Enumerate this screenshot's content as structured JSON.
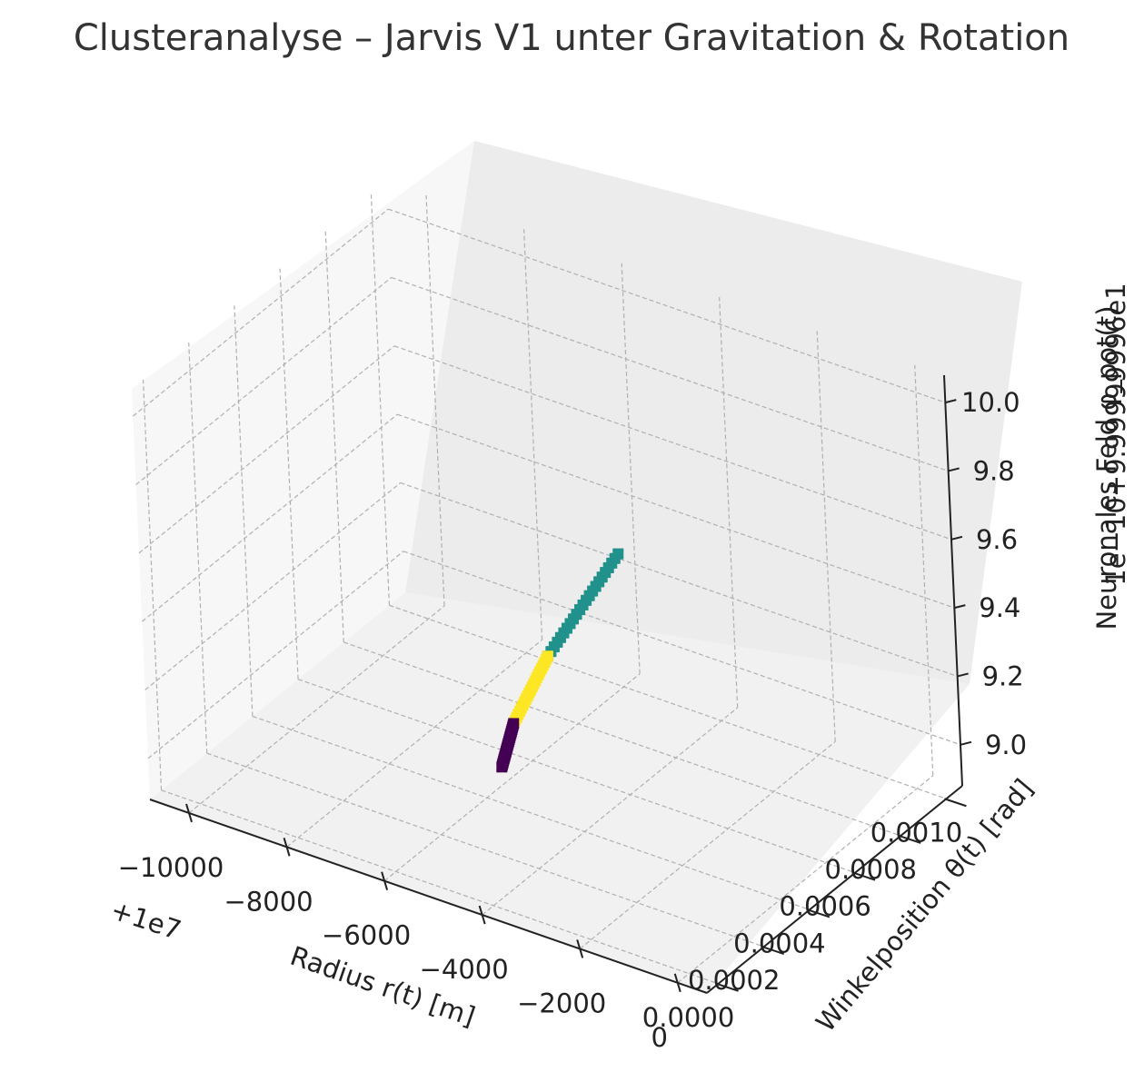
{
  "chart_data": {
    "type": "scatter",
    "projection": "3d",
    "title": "Clusteranalyse – Jarvis V1 unter Gravitation & Rotation",
    "xlabel": "Radius r(t) [m]",
    "ylabel": "Winkelposition θ(t) [rad]",
    "zlabel": "Neuronales Feld φ_pot(t)",
    "x_offset_text": "+1e7",
    "z_offset_text": "1e−10+9.99999996e1",
    "x_ticks": [
      {
        "value": -10000,
        "label": "−10000"
      },
      {
        "value": -8000,
        "label": "−8000"
      },
      {
        "value": -6000,
        "label": "−6000"
      },
      {
        "value": -4000,
        "label": "−4000"
      },
      {
        "value": -2000,
        "label": "−2000"
      },
      {
        "value": 0,
        "label": "0"
      }
    ],
    "y_ticks": [
      {
        "value": 0.0,
        "label": "0.0000"
      },
      {
        "value": 0.0002,
        "label": "0.0002"
      },
      {
        "value": 0.0004,
        "label": "0.0004"
      },
      {
        "value": 0.0006,
        "label": "0.0006"
      },
      {
        "value": 0.0008,
        "label": "0.0008"
      },
      {
        "value": 0.001,
        "label": "0.0010"
      }
    ],
    "z_ticks": [
      {
        "value": 9.0,
        "label": "9.0"
      },
      {
        "value": 9.2,
        "label": "9.2"
      },
      {
        "value": 9.4,
        "label": "9.4"
      },
      {
        "value": 9.6,
        "label": "9.6"
      },
      {
        "value": 9.8,
        "label": "9.8"
      },
      {
        "value": 10.0,
        "label": "10.0"
      }
    ],
    "xlim": [
      -10800,
      600
    ],
    "ylim": [
      -5e-05,
      0.00107
    ],
    "zlim": [
      8.88,
      10.08
    ],
    "grid": true,
    "legend": "none",
    "marker": "x",
    "series": [
      {
        "color": "#21918c",
        "x_range": [
          -5800,
          -5000
        ],
        "y_range": [
          0.00048,
          0.00096
        ],
        "z": 9.3
      },
      {
        "color": "#fde725",
        "x_range": [
          -5000,
          -4300
        ],
        "y_range": [
          0.00018,
          0.00048
        ],
        "z": 9.3
      },
      {
        "color": "#440154",
        "x_range": [
          -4300,
          -3700
        ],
        "y_range": [
          0.0,
          0.00018
        ],
        "z": 9.3
      }
    ]
  }
}
